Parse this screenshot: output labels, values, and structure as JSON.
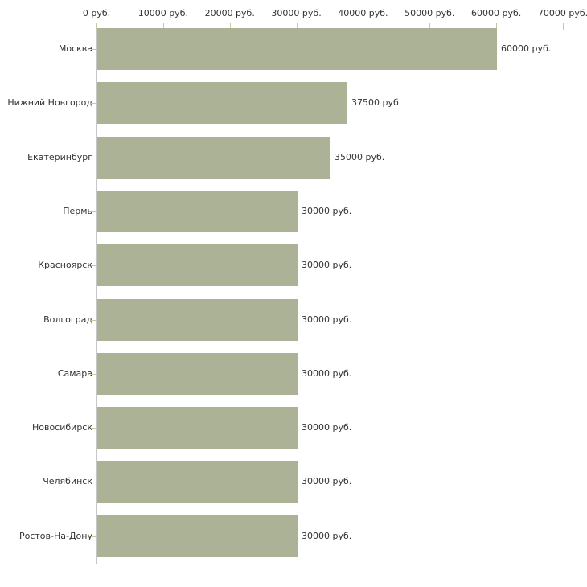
{
  "chart_data": {
    "type": "bar",
    "orientation": "horizontal",
    "title": "",
    "xlabel": "",
    "ylabel": "",
    "grid": false,
    "legend": false,
    "categories": [
      "Москва",
      "Нижний Новгород",
      "Екатеринбург",
      "Пермь",
      "Красноярск",
      "Волгоград",
      "Самара",
      "Новосибирск",
      "Челябинск",
      "Ростов-На-Дону"
    ],
    "values": [
      60000,
      37500,
      35000,
      30000,
      30000,
      30000,
      30000,
      30000,
      30000,
      30000
    ],
    "value_labels": [
      "60000 руб.",
      "37500 руб.",
      "35000 руб.",
      "30000 руб.",
      "30000 руб.",
      "30000 руб.",
      "30000 руб.",
      "30000 руб.",
      "30000 руб.",
      "30000 руб."
    ],
    "axis": {
      "position": "top",
      "min": 0,
      "max": 70000,
      "ticks": [
        0,
        10000,
        20000,
        30000,
        40000,
        50000,
        60000,
        70000
      ],
      "tick_labels": [
        "0 руб.",
        "10000 руб.",
        "20000 руб.",
        "30000 руб.",
        "40000 руб.",
        "50000 руб.",
        "60000 руб.",
        "70000 руб."
      ],
      "unit": "руб."
    },
    "colors": {
      "bar": "#acb296",
      "axis_line": "#c6c6c6",
      "tick_mark": "#c5ca9c",
      "text": "#333333",
      "background": "#ffffff"
    }
  }
}
